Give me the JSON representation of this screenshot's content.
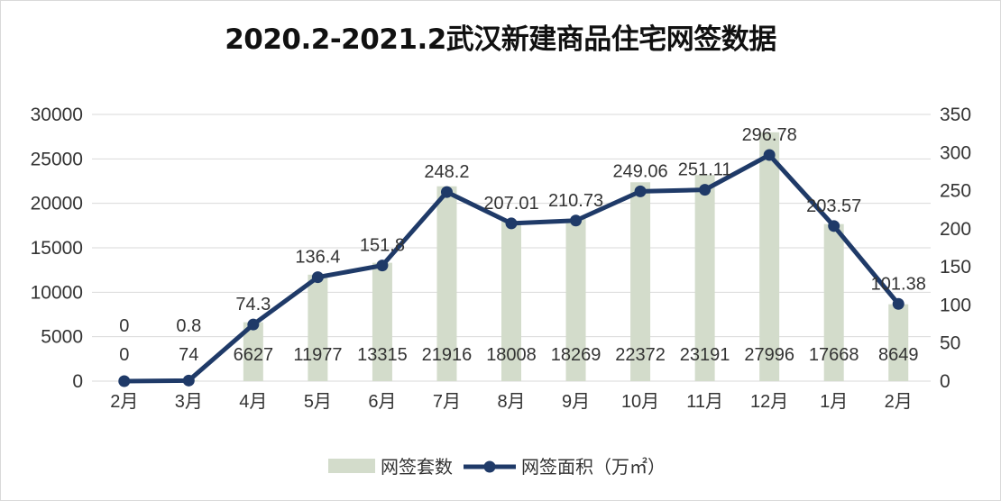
{
  "chart_data": {
    "type": "bar+line",
    "title": "2020.2-2021.2武汉新建商品住宅网签数据",
    "categories": [
      "2月",
      "3月",
      "4月",
      "5月",
      "6月",
      "7月",
      "8月",
      "9月",
      "10月",
      "11月",
      "12月",
      "1月",
      "2月"
    ],
    "series": [
      {
        "name": "网签套数",
        "type": "bar",
        "axis": "left",
        "color": "#d3dccb",
        "values": [
          0,
          74,
          6627,
          11977,
          13315,
          21916,
          18008,
          18269,
          22372,
          23191,
          27996,
          17668,
          8649
        ]
      },
      {
        "name": "网签面积（万㎡）",
        "type": "line",
        "axis": "right",
        "color": "#1f3a68",
        "values": [
          0,
          0.8,
          74.3,
          136.4,
          151.8,
          248.2,
          207.01,
          210.73,
          249.06,
          251.11,
          296.78,
          203.57,
          101.38
        ]
      }
    ],
    "left_axis": {
      "ylim": [
        0,
        30000
      ],
      "ticks": [
        0,
        5000,
        10000,
        15000,
        20000,
        25000,
        30000
      ]
    },
    "right_axis": {
      "ylim": [
        0,
        350
      ],
      "ticks": [
        0,
        50,
        100,
        150,
        200,
        250,
        300,
        350
      ]
    },
    "grid": true,
    "legend_position": "bottom"
  }
}
